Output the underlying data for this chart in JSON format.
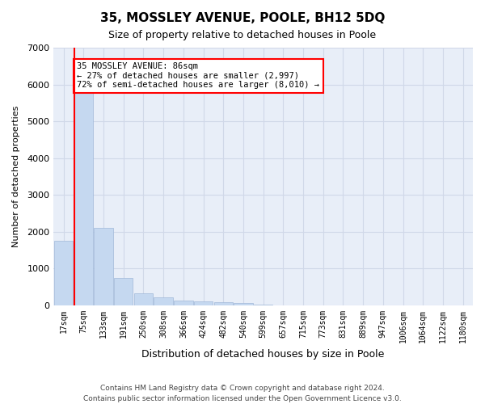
{
  "title": "35, MOSSLEY AVENUE, POOLE, BH12 5DQ",
  "subtitle": "Size of property relative to detached houses in Poole",
  "xlabel": "Distribution of detached houses by size in Poole",
  "ylabel": "Number of detached properties",
  "bar_labels": [
    "17sqm",
    "75sqm",
    "133sqm",
    "191sqm",
    "250sqm",
    "308sqm",
    "366sqm",
    "424sqm",
    "482sqm",
    "540sqm",
    "599sqm",
    "657sqm",
    "715sqm",
    "773sqm",
    "831sqm",
    "889sqm",
    "947sqm",
    "1006sqm",
    "1064sqm",
    "1122sqm",
    "1180sqm"
  ],
  "bar_values": [
    1750,
    5900,
    2100,
    750,
    330,
    210,
    130,
    105,
    80,
    60,
    25,
    0,
    0,
    0,
    0,
    0,
    0,
    0,
    0,
    0,
    0
  ],
  "bar_color": "#c5d8f0",
  "bar_edge_color": "#a0b8d8",
  "property_size": 86,
  "property_bin_index": 1,
  "vline_x": 1,
  "annotation_text": "35 MOSSLEY AVENUE: 86sqm\n← 27% of detached houses are smaller (2,997)\n72% of semi-detached houses are larger (8,010) →",
  "annotation_box_color": "white",
  "annotation_border_color": "red",
  "vline_color": "red",
  "ylim": [
    0,
    7000
  ],
  "yticks": [
    0,
    1000,
    2000,
    3000,
    4000,
    5000,
    6000,
    7000
  ],
  "grid_color": "#d0d8e8",
  "background_color": "#e8eef8",
  "footer_line1": "Contains HM Land Registry data © Crown copyright and database right 2024.",
  "footer_line2": "Contains public sector information licensed under the Open Government Licence v3.0."
}
